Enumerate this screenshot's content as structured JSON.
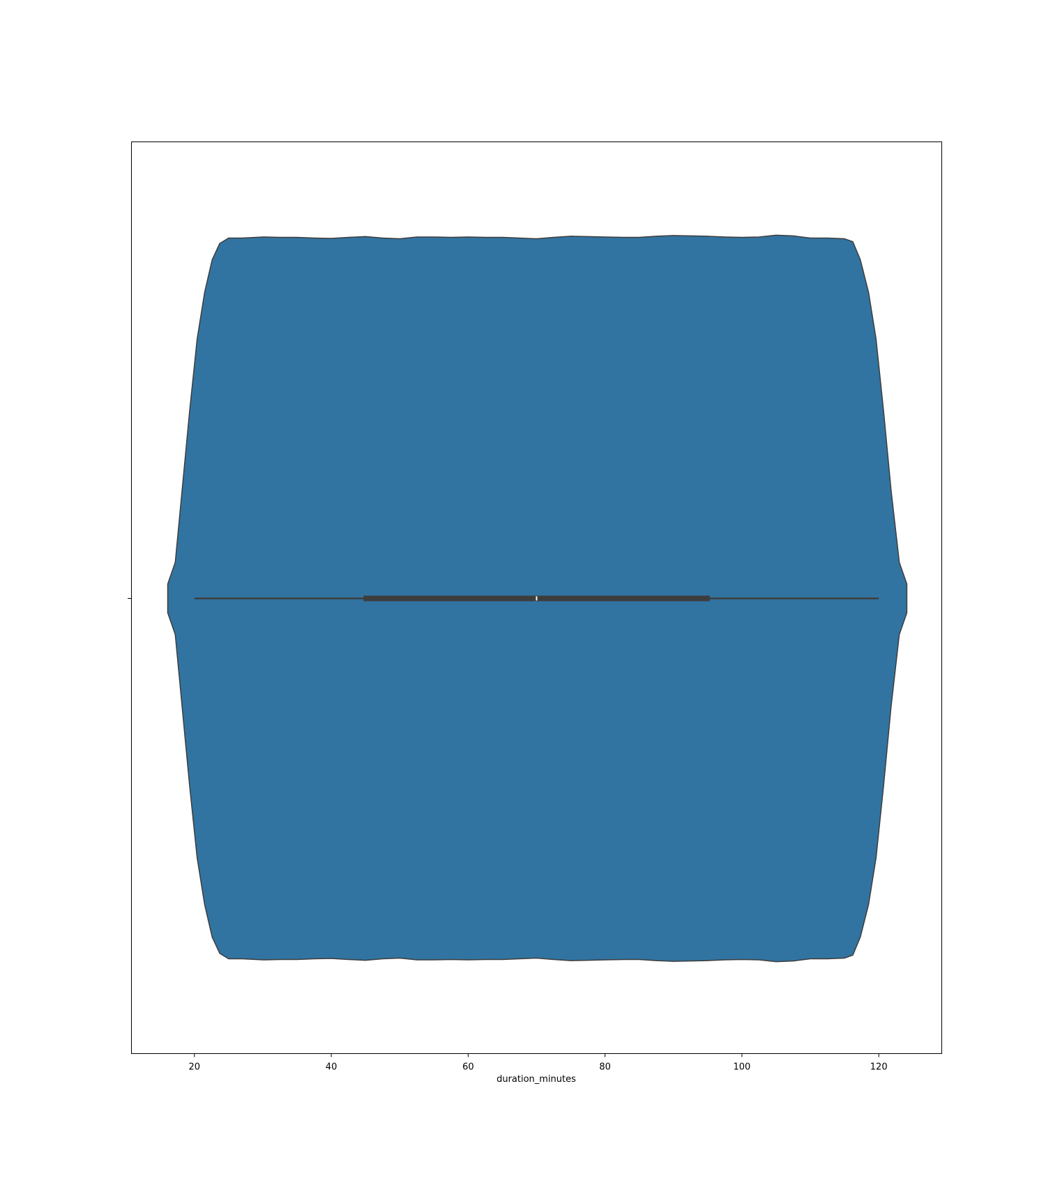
{
  "chart_data": {
    "type": "violin",
    "title": "",
    "xlabel": "duration_minutes",
    "ylabel": "",
    "xlim": [
      10.8,
      129.2
    ],
    "xticks": [
      20,
      40,
      60,
      80,
      100,
      120
    ],
    "grid": false,
    "legend": "none",
    "colors": {
      "fill": "#3274a1",
      "edge": "#3d3d3d",
      "box": "#3d3d3d",
      "median": "#ffffff",
      "frame": "#000000"
    },
    "summary": {
      "min": 20,
      "q1": 44.7,
      "median": 70,
      "q3": 95.3,
      "max": 120
    },
    "density": {
      "x": [
        16.1,
        17.2,
        18.2,
        19.3,
        20.4,
        21.5,
        22.6,
        23.7,
        25,
        27,
        30,
        32.5,
        35,
        37.5,
        40,
        42.5,
        45,
        47.5,
        50,
        52.5,
        55,
        57.5,
        60,
        62.5,
        65,
        67.5,
        70,
        72.5,
        75,
        77.5,
        80,
        82.5,
        85,
        87.5,
        90,
        92.5,
        95,
        97.5,
        100,
        102.5,
        105,
        107.5,
        110,
        112.5,
        115,
        116.2,
        117.3,
        118.5,
        119.6,
        120.7,
        121.8,
        123,
        124.1
      ],
      "density": [
        0.04,
        0.1,
        0.3,
        0.52,
        0.72,
        0.85,
        0.94,
        0.985,
        1.0,
        1.0,
        1.003,
        1.002,
        1.002,
        1.0,
        0.999,
        1.002,
        1.004,
        1.0,
        0.998,
        1.003,
        1.003,
        1.002,
        1.003,
        1.002,
        1.002,
        1.0,
        0.998,
        1.002,
        1.005,
        1.004,
        1.003,
        1.002,
        1.002,
        1.005,
        1.007,
        1.006,
        1.005,
        1.003,
        1.002,
        1.003,
        1.008,
        1.006,
        1.0,
        1.0,
        0.998,
        0.99,
        0.94,
        0.85,
        0.72,
        0.52,
        0.3,
        0.1,
        0.04
      ]
    }
  }
}
